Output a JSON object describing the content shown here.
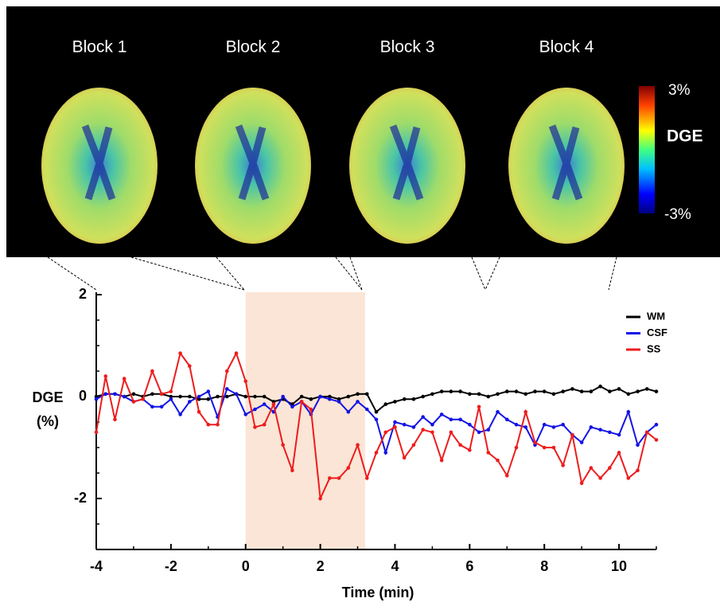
{
  "panel_labels": [
    "Block 1",
    "Block 2",
    "Block 3",
    "Block 4"
  ],
  "colorbar": {
    "max_label": "3%",
    "label": "DGE",
    "min_label": "-3%"
  },
  "chart_data": {
    "type": "line",
    "y_label_lines": [
      "DGE",
      "(%)"
    ],
    "x_label": "Time (min)",
    "x": [
      -4,
      -3.75,
      -3.5,
      -3.25,
      -3,
      -2.75,
      -2.5,
      -2.25,
      -2,
      -1.75,
      -1.5,
      -1.25,
      -1,
      -0.75,
      -0.5,
      -0.25,
      0,
      0.25,
      0.5,
      0.75,
      1,
      1.25,
      1.5,
      1.75,
      2,
      2.25,
      2.5,
      2.75,
      3,
      3.25,
      3.5,
      3.75,
      4,
      4.25,
      4.5,
      4.75,
      5,
      5.25,
      5.5,
      5.75,
      6,
      6.25,
      6.5,
      6.75,
      7,
      7.25,
      7.5,
      7.75,
      8,
      8.25,
      8.5,
      8.75,
      9,
      9.25,
      9.5,
      9.75,
      10,
      10.25,
      10.5,
      10.75,
      11
    ],
    "series": [
      {
        "name": "WM",
        "color": "#000000",
        "values": [
          0.0,
          0.05,
          0.05,
          0.0,
          0.05,
          0.0,
          0.05,
          0.05,
          0.0,
          0.0,
          0.0,
          -0.05,
          -0.05,
          0.0,
          0.0,
          0.05,
          0.0,
          0.0,
          0.0,
          -0.1,
          -0.05,
          -0.15,
          0.0,
          -0.05,
          0.0,
          0.0,
          -0.05,
          0.0,
          0.05,
          0.05,
          -0.3,
          -0.15,
          -0.1,
          -0.05,
          -0.05,
          0.0,
          0.05,
          0.1,
          0.1,
          0.1,
          0.05,
          0.05,
          0.0,
          0.05,
          0.1,
          0.1,
          0.05,
          0.1,
          0.1,
          0.05,
          0.1,
          0.15,
          0.1,
          0.1,
          0.2,
          0.1,
          0.15,
          0.05,
          0.1,
          0.15,
          0.1
        ]
      },
      {
        "name": "CSF",
        "color": "#1414e6",
        "values": [
          -0.05,
          0.05,
          0.05,
          0.0,
          -0.1,
          -0.05,
          -0.2,
          -0.2,
          -0.05,
          -0.35,
          -0.1,
          0.0,
          0.1,
          -0.4,
          0.15,
          0.05,
          -0.35,
          -0.25,
          -0.15,
          -0.3,
          0.0,
          -0.2,
          -0.1,
          -0.35,
          0.0,
          -0.05,
          -0.1,
          -0.3,
          -0.1,
          -0.25,
          -0.45,
          -1.1,
          -0.5,
          -0.55,
          -0.6,
          -0.4,
          -0.55,
          -0.35,
          -0.45,
          -0.45,
          -0.55,
          -0.7,
          -0.65,
          -0.3,
          -0.45,
          -0.55,
          -0.6,
          -0.95,
          -0.55,
          -0.6,
          -0.55,
          -0.75,
          -0.9,
          -0.6,
          -0.65,
          -0.7,
          -0.75,
          -0.3,
          -0.95,
          -0.7,
          -0.55
        ]
      },
      {
        "name": "SS",
        "color": "#ee1c1c",
        "values": [
          -0.7,
          0.4,
          -0.45,
          0.35,
          -0.1,
          -0.05,
          0.5,
          0.05,
          0.1,
          0.85,
          0.6,
          -0.3,
          -0.55,
          -0.55,
          0.5,
          0.85,
          0.3,
          -0.6,
          -0.55,
          -0.15,
          -0.95,
          -1.45,
          -0.1,
          -0.25,
          -2.0,
          -1.6,
          -1.6,
          -1.4,
          -0.95,
          -1.6,
          -1.1,
          -0.7,
          -0.6,
          -1.2,
          -0.95,
          -0.65,
          -0.7,
          -1.25,
          -0.7,
          -0.95,
          -1.05,
          -0.2,
          -1.1,
          -1.25,
          -1.55,
          -1.0,
          -0.3,
          -0.9,
          -1.0,
          -1.0,
          -1.35,
          -0.75,
          -1.7,
          -1.4,
          -1.6,
          -1.4,
          -1.1,
          -1.6,
          -1.45,
          -0.7,
          -0.85
        ]
      }
    ],
    "xlim": [
      -4,
      11
    ],
    "xticks": [
      -4,
      -2,
      0,
      2,
      4,
      6,
      8,
      10
    ],
    "ylim": [
      -3,
      2
    ],
    "yticks": [
      -2,
      0,
      2
    ],
    "highlight": {
      "xrange": [
        0,
        3.2
      ],
      "color": "#fbe5d6"
    },
    "legend": "top-right"
  }
}
